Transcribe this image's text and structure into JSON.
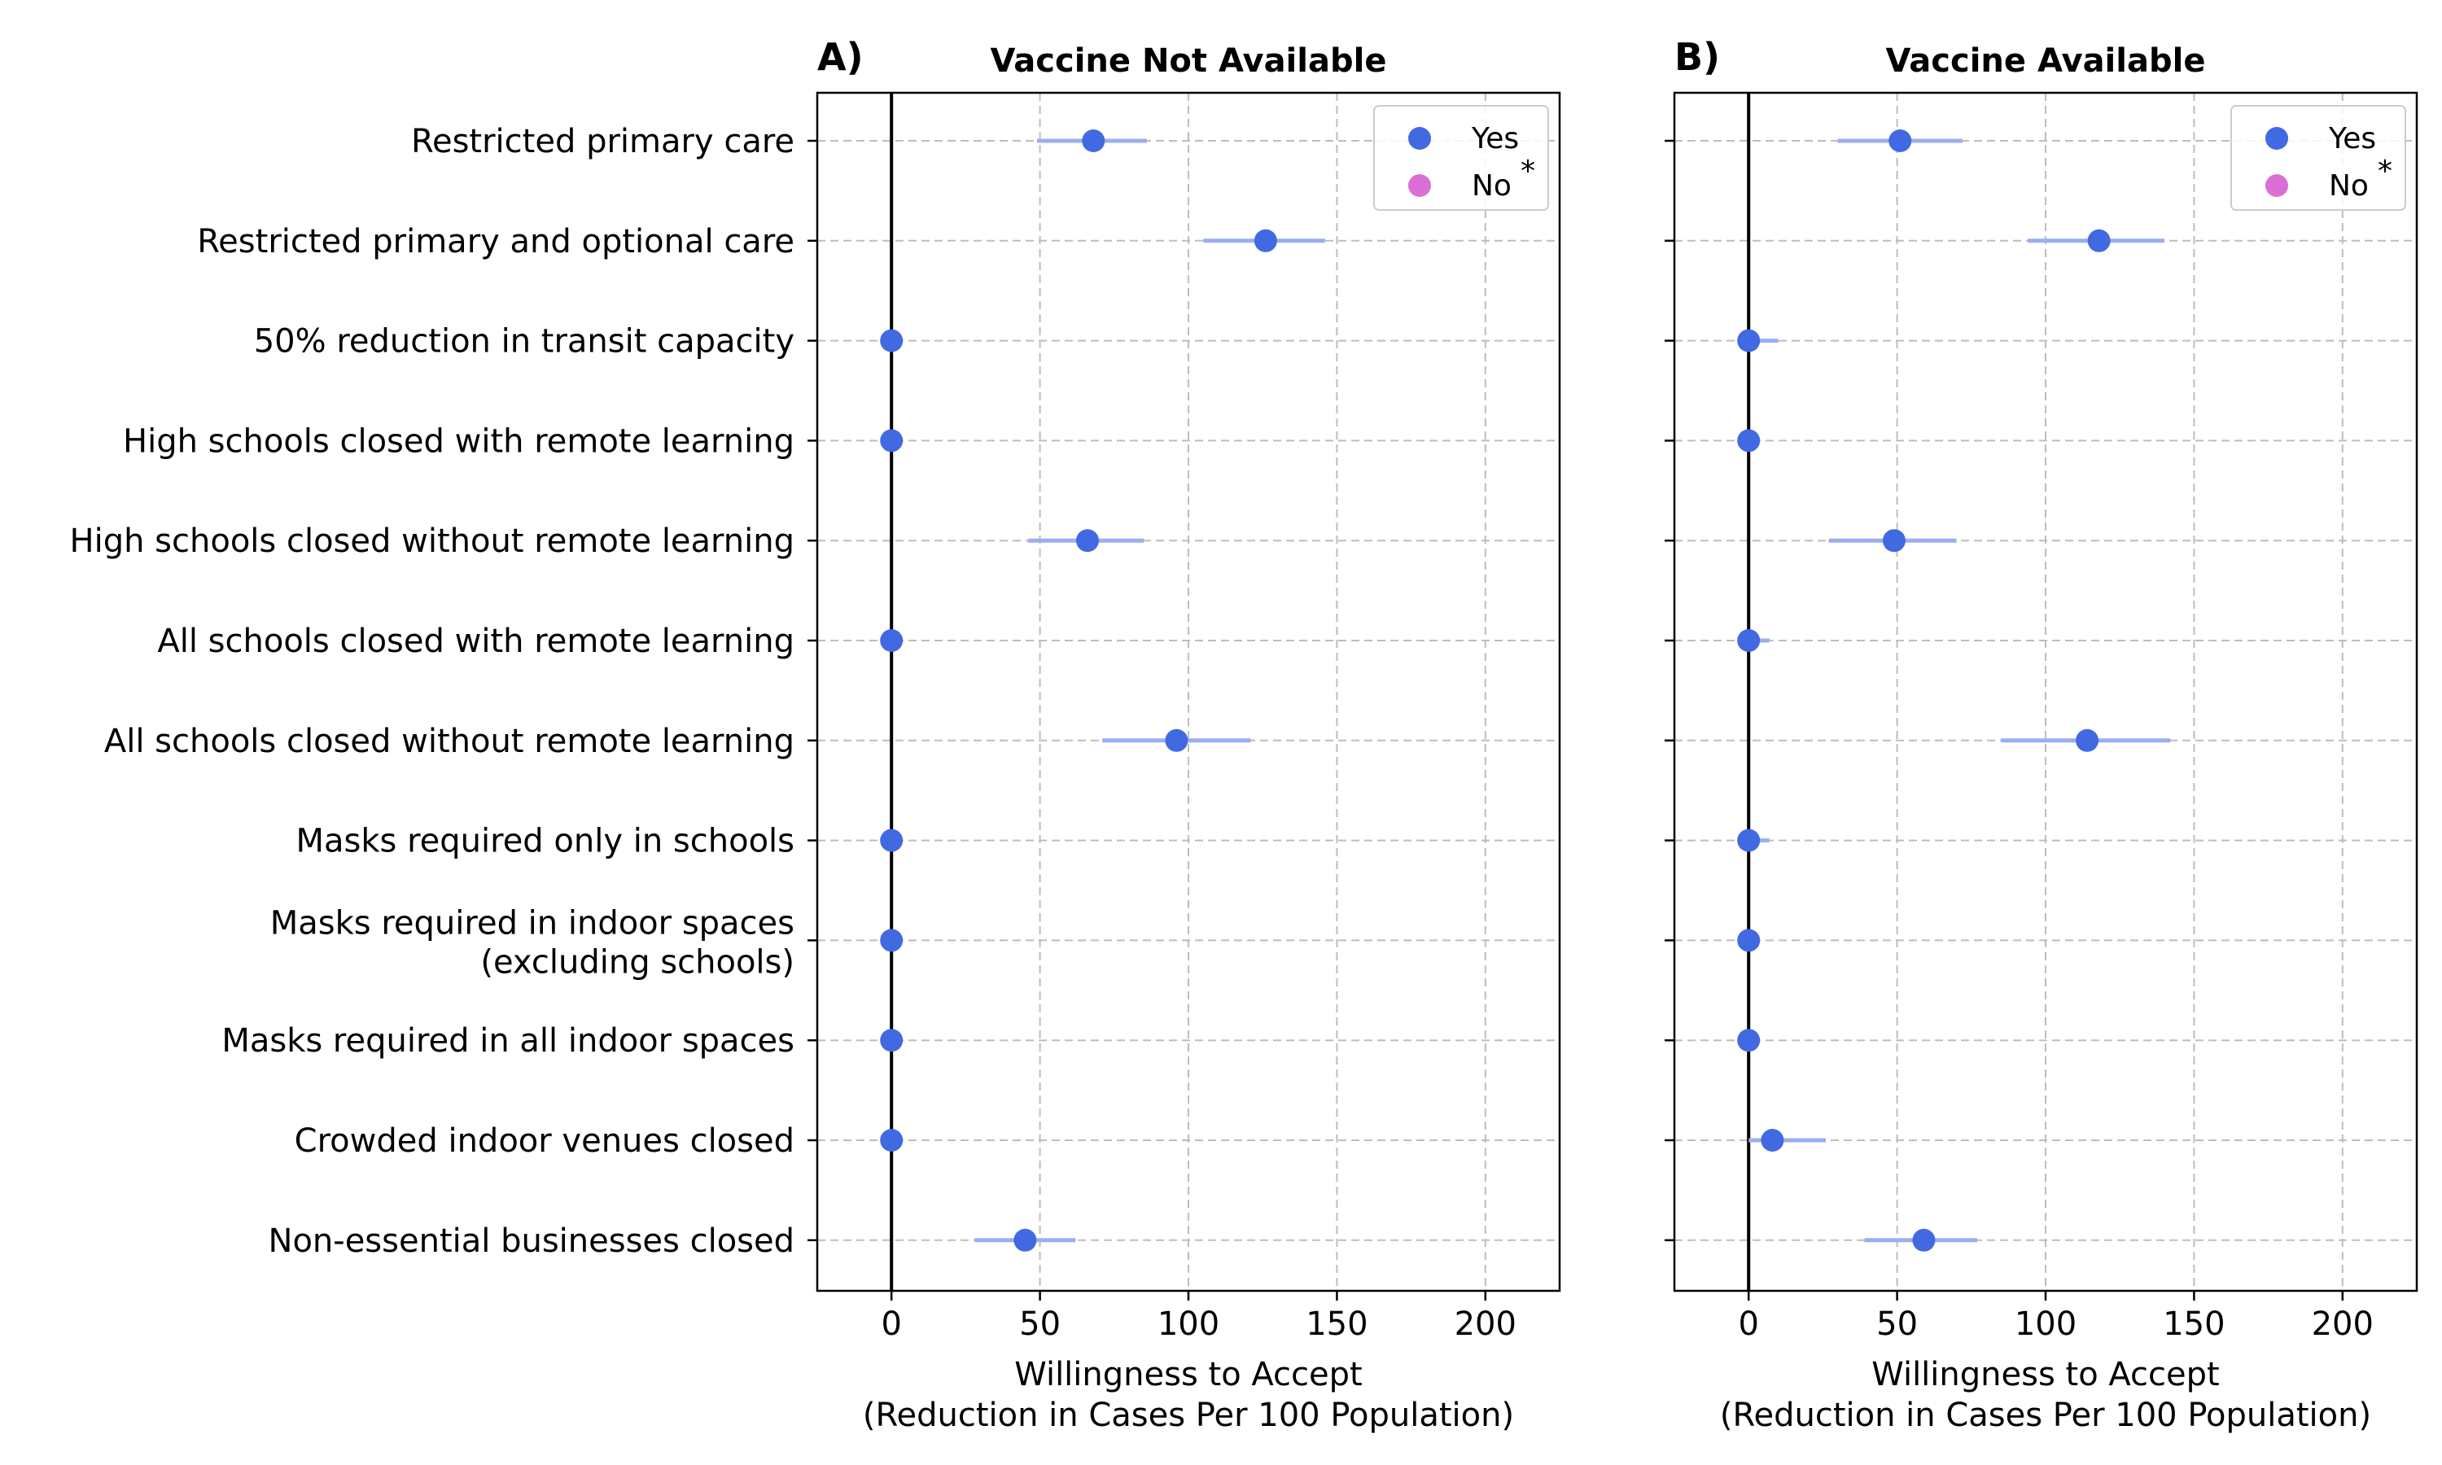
{
  "chart_data": {
    "type": "scatter",
    "categories": [
      "Restricted primary care",
      "Restricted primary and optional care",
      "50% reduction in transit capacity",
      "High schools closed with remote learning",
      "High schools closed without remote learning",
      "All schools closed with remote learning",
      "All schools closed without remote learning",
      "Masks required only in schools",
      [
        "Masks required in indoor spaces",
        "(excluding schools)"
      ],
      "Masks required in all indoor spaces",
      "Crowded indoor venues closed",
      "Non-essential businesses closed"
    ],
    "xlabel": [
      "Willingness to Accept",
      "(Reduction in Cases Per 100 Population)"
    ],
    "xlim": [
      -25,
      225
    ],
    "xticks": [
      0,
      50,
      100,
      150,
      200
    ],
    "grid": true,
    "colors": {
      "yes": "#4169e1",
      "yes_err": "#9aaef0",
      "no": "#da70d6"
    },
    "legend": {
      "position": "top-right",
      "entries": [
        "Yes",
        "No"
      ],
      "no_marker_text": "*"
    },
    "panels": [
      {
        "label": "A)",
        "title": "Vaccine Not Available",
        "series": [
          {
            "name": "Yes",
            "values": [
              68,
              126,
              0,
              0,
              66,
              0,
              96,
              0,
              0,
              0,
              0,
              45
            ],
            "lower": [
              49,
              105,
              0,
              0,
              46,
              0,
              71,
              0,
              0,
              0,
              0,
              28
            ],
            "upper": [
              86,
              146,
              0,
              0,
              85,
              0,
              121,
              0,
              0,
              0,
              0,
              62
            ]
          }
        ]
      },
      {
        "label": "B)",
        "title": "Vaccine Available",
        "series": [
          {
            "name": "Yes",
            "values": [
              51,
              118,
              0,
              0,
              49,
              0,
              114,
              0,
              0,
              0,
              8,
              59
            ],
            "lower": [
              30,
              94,
              0,
              0,
              27,
              0,
              85,
              0,
              0,
              0,
              0,
              39
            ],
            "upper": [
              72,
              140,
              10,
              0,
              70,
              7,
              142,
              7,
              0,
              0,
              26,
              77
            ]
          }
        ]
      }
    ]
  }
}
